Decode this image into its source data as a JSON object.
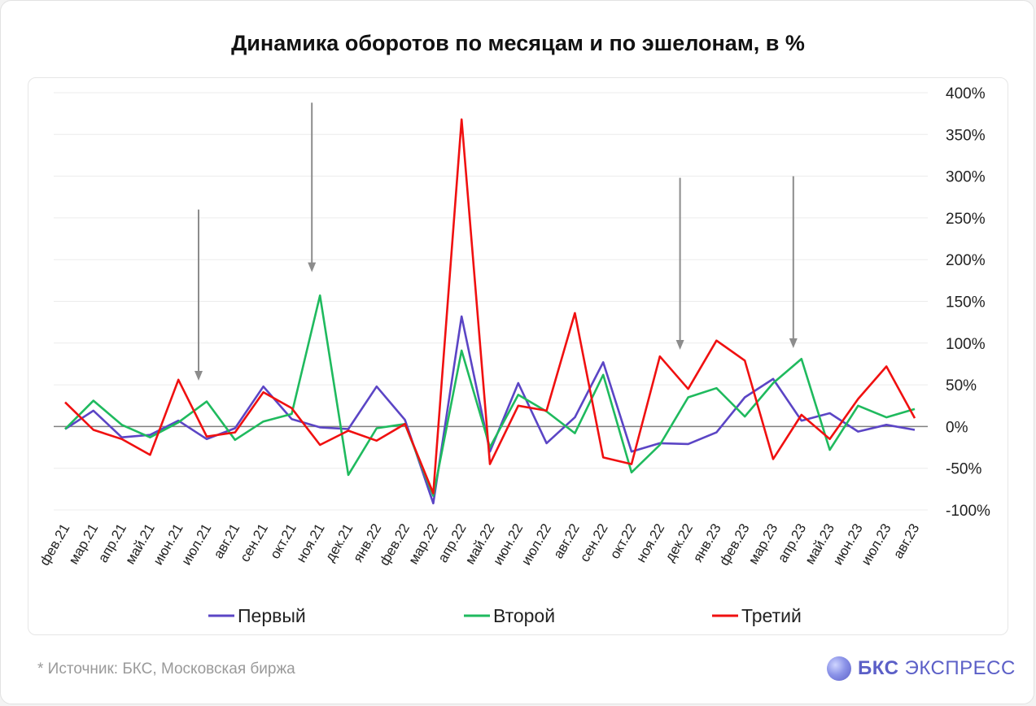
{
  "title": "Динамика оборотов по месяцам и по эшелонам, в %",
  "footer": {
    "source": "*  Источник: БКС, Московская биржа",
    "logo_strong": "БКС",
    "logo_rest": "ЭКСПРЕСС"
  },
  "colors": {
    "series1": "#5b45c5",
    "series2": "#1fba5e",
    "series3": "#f01010",
    "arrow": "#8c8c8c",
    "zero_line": "#808080",
    "grid": "#ececec"
  },
  "chart_data": {
    "type": "line",
    "title": "Динамика оборотов по месяцам и по эшелонам, в %",
    "categories": [
      "фев.21",
      "мар.21",
      "апр.21",
      "май.21",
      "июн.21",
      "июл.21",
      "авг.21",
      "сен.21",
      "окт.21",
      "ноя.21",
      "дек.21",
      "янв.22",
      "фев.22",
      "мар.22",
      "апр.22",
      "май.22",
      "июн.22",
      "июл.22",
      "авг.22",
      "сен.22",
      "окт.22",
      "ноя.22",
      "дек.22",
      "янв.23",
      "фев.23",
      "мар.23",
      "апр.23",
      "май.23",
      "июн.23",
      "июл.23",
      "авг.23"
    ],
    "series": [
      {
        "name": "Первый",
        "values": [
          -3,
          19,
          -13,
          -10,
          7,
          -15,
          -2,
          48,
          9,
          -1,
          -3,
          48,
          8,
          -92,
          132,
          -30,
          52,
          -20,
          11,
          77,
          -30,
          -20,
          -21,
          -7,
          35,
          57,
          7,
          16,
          -6,
          2,
          -4
        ]
      },
      {
        "name": "Второй",
        "values": [
          -3,
          31,
          2,
          -13,
          5,
          30,
          -16,
          6,
          15,
          157,
          -58,
          -2,
          3,
          -83,
          91,
          -25,
          38,
          18,
          -8,
          62,
          -55,
          -22,
          35,
          46,
          12,
          52,
          81,
          -28,
          25,
          11,
          21
        ]
      },
      {
        "name": "Третий",
        "values": [
          29,
          -4,
          -15,
          -34,
          56,
          -12,
          -7,
          41,
          22,
          -22,
          -5,
          -17,
          3,
          -80,
          368,
          -45,
          25,
          19,
          136,
          -37,
          -45,
          84,
          45,
          103,
          79,
          -39,
          14,
          -15,
          33,
          72,
          10
        ]
      }
    ],
    "ylim": [
      -100,
      400
    ],
    "y_ticks": [
      400,
      350,
      300,
      250,
      200,
      150,
      100,
      50,
      0,
      -50,
      -100
    ],
    "y_tick_labels": [
      "400%",
      "350%",
      "300%",
      "250%",
      "200%",
      "150%",
      "100%",
      "50%",
      "0%",
      "-50%",
      "-100%"
    ],
    "y_axis_position": "right",
    "grid": true,
    "legend_position": "bottom",
    "annotations": [
      {
        "type": "arrow-down",
        "at_category": "июл.21",
        "from_y": 260,
        "to_y": 55
      },
      {
        "type": "arrow-down",
        "at_category": "ноя.21",
        "from_y": 388,
        "to_y": 185
      },
      {
        "type": "arrow-down",
        "at_category": "дек.22",
        "from_y": 298,
        "to_y": 92
      },
      {
        "type": "arrow-down",
        "at_category": "апр.23",
        "from_y": 300,
        "to_y": 94
      }
    ]
  }
}
